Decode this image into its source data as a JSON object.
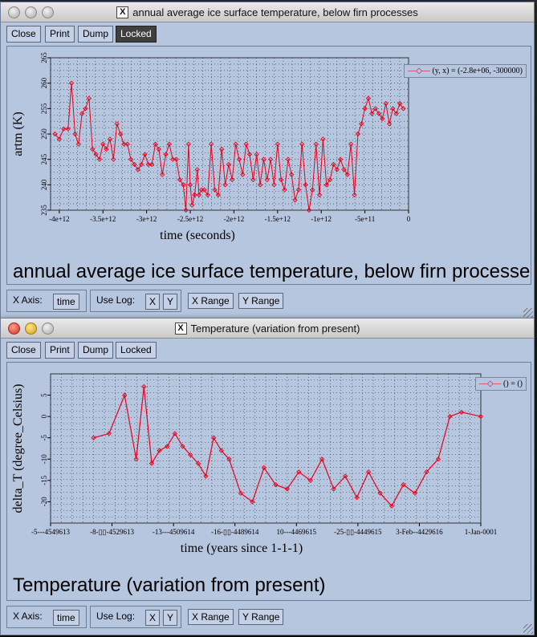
{
  "window1": {
    "title": "annual average ice surface temperature, below firn processes",
    "toolbar": {
      "close": "Close",
      "print": "Print",
      "dump": "Dump",
      "locked": "Locked"
    },
    "caption": "annual average ice surface temperature, below firn processes",
    "bottom": {
      "xaxis_label": "X Axis:",
      "xaxis_value": "time",
      "uselog_label": "Use Log:",
      "x": "X",
      "y": "Y",
      "xrange": "X Range",
      "yrange": "Y Range"
    }
  },
  "window2": {
    "title": "Temperature (variation from present)",
    "toolbar": {
      "close": "Close",
      "print": "Print",
      "dump": "Dump",
      "locked": "Locked"
    },
    "caption": "Temperature (variation from present)",
    "bottom": {
      "xaxis_label": "X Axis:",
      "xaxis_value": "time",
      "uselog_label": "Use Log:",
      "x": "X",
      "y": "Y",
      "xrange": "X Range",
      "yrange": "Y Range"
    }
  },
  "colors": {
    "series": "#e8001c",
    "panel": "#b7c6df",
    "locked_button": "#3f3f3f"
  },
  "chart_data": [
    {
      "type": "line",
      "title": "",
      "xlabel": "time (seconds)",
      "ylabel": "artm (K)",
      "xlim": [
        -4100000000000.0,
        0
      ],
      "ylim": [
        235,
        265
      ],
      "xticks": [
        "-4e+12",
        "-3.5e+12",
        "-3e+12",
        "-2.5e+12",
        "-2e+12",
        "-1.5e+12",
        "-1e+12",
        "-5e+11",
        "0"
      ],
      "xtick_values": [
        -4000000000000.0,
        -3500000000000.0,
        -3000000000000.0,
        -2500000000000.0,
        -2000000000000.0,
        -1500000000000.0,
        -1000000000000.0,
        -500000000000.0,
        0
      ],
      "yticks": [
        "235",
        "240",
        "245",
        "250",
        "255",
        "260",
        "265"
      ],
      "grid": true,
      "legend_position": "top-right",
      "series": [
        {
          "name": "(y, x) = (-2.8e+06, -300000)",
          "x": [
            -4050000000000.0,
            -4000000000000.0,
            -3950000000000.0,
            -3900000000000.0,
            -3860000000000.0,
            -3820000000000.0,
            -3780000000000.0,
            -3740000000000.0,
            -3700000000000.0,
            -3660000000000.0,
            -3620000000000.0,
            -3580000000000.0,
            -3540000000000.0,
            -3500000000000.0,
            -3460000000000.0,
            -3420000000000.0,
            -3380000000000.0,
            -3340000000000.0,
            -3300000000000.0,
            -3260000000000.0,
            -3220000000000.0,
            -3180000000000.0,
            -3140000000000.0,
            -3100000000000.0,
            -3060000000000.0,
            -3020000000000.0,
            -2980000000000.0,
            -2940000000000.0,
            -2900000000000.0,
            -2860000000000.0,
            -2820000000000.0,
            -2780000000000.0,
            -2740000000000.0,
            -2700000000000.0,
            -2660000000000.0,
            -2620000000000.0,
            -2580000000000.0,
            -2550000000000.0,
            -2520000000000.0,
            -2500000000000.0,
            -2480000000000.0,
            -2450000000000.0,
            -2420000000000.0,
            -2400000000000.0,
            -2370000000000.0,
            -2340000000000.0,
            -2300000000000.0,
            -2260000000000.0,
            -2220000000000.0,
            -2180000000000.0,
            -2140000000000.0,
            -2100000000000.0,
            -2060000000000.0,
            -2020000000000.0,
            -1980000000000.0,
            -1940000000000.0,
            -1900000000000.0,
            -1860000000000.0,
            -1820000000000.0,
            -1780000000000.0,
            -1740000000000.0,
            -1700000000000.0,
            -1660000000000.0,
            -1620000000000.0,
            -1580000000000.0,
            -1540000000000.0,
            -1500000000000.0,
            -1460000000000.0,
            -1420000000000.0,
            -1380000000000.0,
            -1340000000000.0,
            -1300000000000.0,
            -1260000000000.0,
            -1220000000000.0,
            -1180000000000.0,
            -1140000000000.0,
            -1100000000000.0,
            -1060000000000.0,
            -1020000000000.0,
            -980000000000.0,
            -940000000000.0,
            -900000000000.0,
            -860000000000.0,
            -820000000000.0,
            -780000000000.0,
            -740000000000.0,
            -700000000000.0,
            -660000000000.0,
            -620000000000.0,
            -580000000000.0,
            -540000000000.0,
            -500000000000.0,
            -460000000000.0,
            -420000000000.0,
            -380000000000.0,
            -340000000000.0,
            -300000000000.0,
            -260000000000.0,
            -220000000000.0,
            -180000000000.0,
            -140000000000.0,
            -100000000000.0,
            -60000000000.0
          ],
          "y": [
            250,
            249,
            251,
            251,
            260,
            250,
            248,
            254,
            255,
            257,
            247,
            246,
            245,
            248,
            247,
            249,
            245,
            252,
            250,
            248,
            248,
            245,
            244,
            243,
            244,
            246,
            244,
            244,
            248,
            247,
            242,
            246,
            248,
            245,
            245,
            241,
            240,
            235,
            248,
            240,
            236,
            238,
            243,
            238,
            239,
            239,
            238,
            248,
            239,
            238,
            247,
            240,
            244,
            241,
            248,
            245,
            242,
            248,
            246,
            241,
            246,
            240,
            245,
            241,
            245,
            240,
            248,
            241,
            239,
            245,
            242,
            237,
            239,
            248,
            240,
            235,
            239,
            248,
            238,
            249,
            240,
            241,
            244,
            243,
            245,
            243,
            242,
            248,
            238,
            250,
            252,
            255,
            257,
            254,
            255,
            254,
            253,
            256,
            252,
            255,
            254,
            256,
            255
          ]
        }
      ]
    },
    {
      "type": "line",
      "title": "",
      "xlabel": "time (years since 1-1-1)",
      "ylabel": "delta_T (degree_Celsius)",
      "ylim": [
        -25,
        10
      ],
      "xticks": [
        "-5---4549613",
        "-8-▯▯-4529613",
        "-13---4509614",
        "-16-▯▯-4489614",
        "10---4469615",
        "-25-▯▯-4449615",
        "3-Feb--4429616",
        "1-Jan-0001"
      ],
      "yticks": [
        "-20",
        "-15",
        "-10",
        "-5",
        "0",
        "5"
      ],
      "grid": true,
      "legend_position": "top-right",
      "series": [
        {
          "name": "() = ()",
          "x": [
            0,
            0.04,
            0.08,
            0.11,
            0.13,
            0.15,
            0.17,
            0.19,
            0.21,
            0.23,
            0.25,
            0.27,
            0.29,
            0.31,
            0.33,
            0.35,
            0.38,
            0.41,
            0.44,
            0.47,
            0.5,
            0.53,
            0.56,
            0.59,
            0.62,
            0.65,
            0.68,
            0.71,
            0.74,
            0.77,
            0.8,
            0.83,
            0.86,
            0.89,
            0.92,
            0.95,
            1.0
          ],
          "y": [
            -5,
            -4,
            5,
            -10,
            7,
            -11,
            -8,
            -7,
            -4,
            -7,
            -9,
            -11,
            -14,
            -5,
            -8,
            -10,
            -18,
            -20,
            -12,
            -16,
            -17,
            -13,
            -15,
            -10,
            -17,
            -14,
            -19,
            -13,
            -18,
            -21,
            -16,
            -18,
            -13,
            -10,
            0,
            1,
            0
          ]
        }
      ]
    }
  ]
}
